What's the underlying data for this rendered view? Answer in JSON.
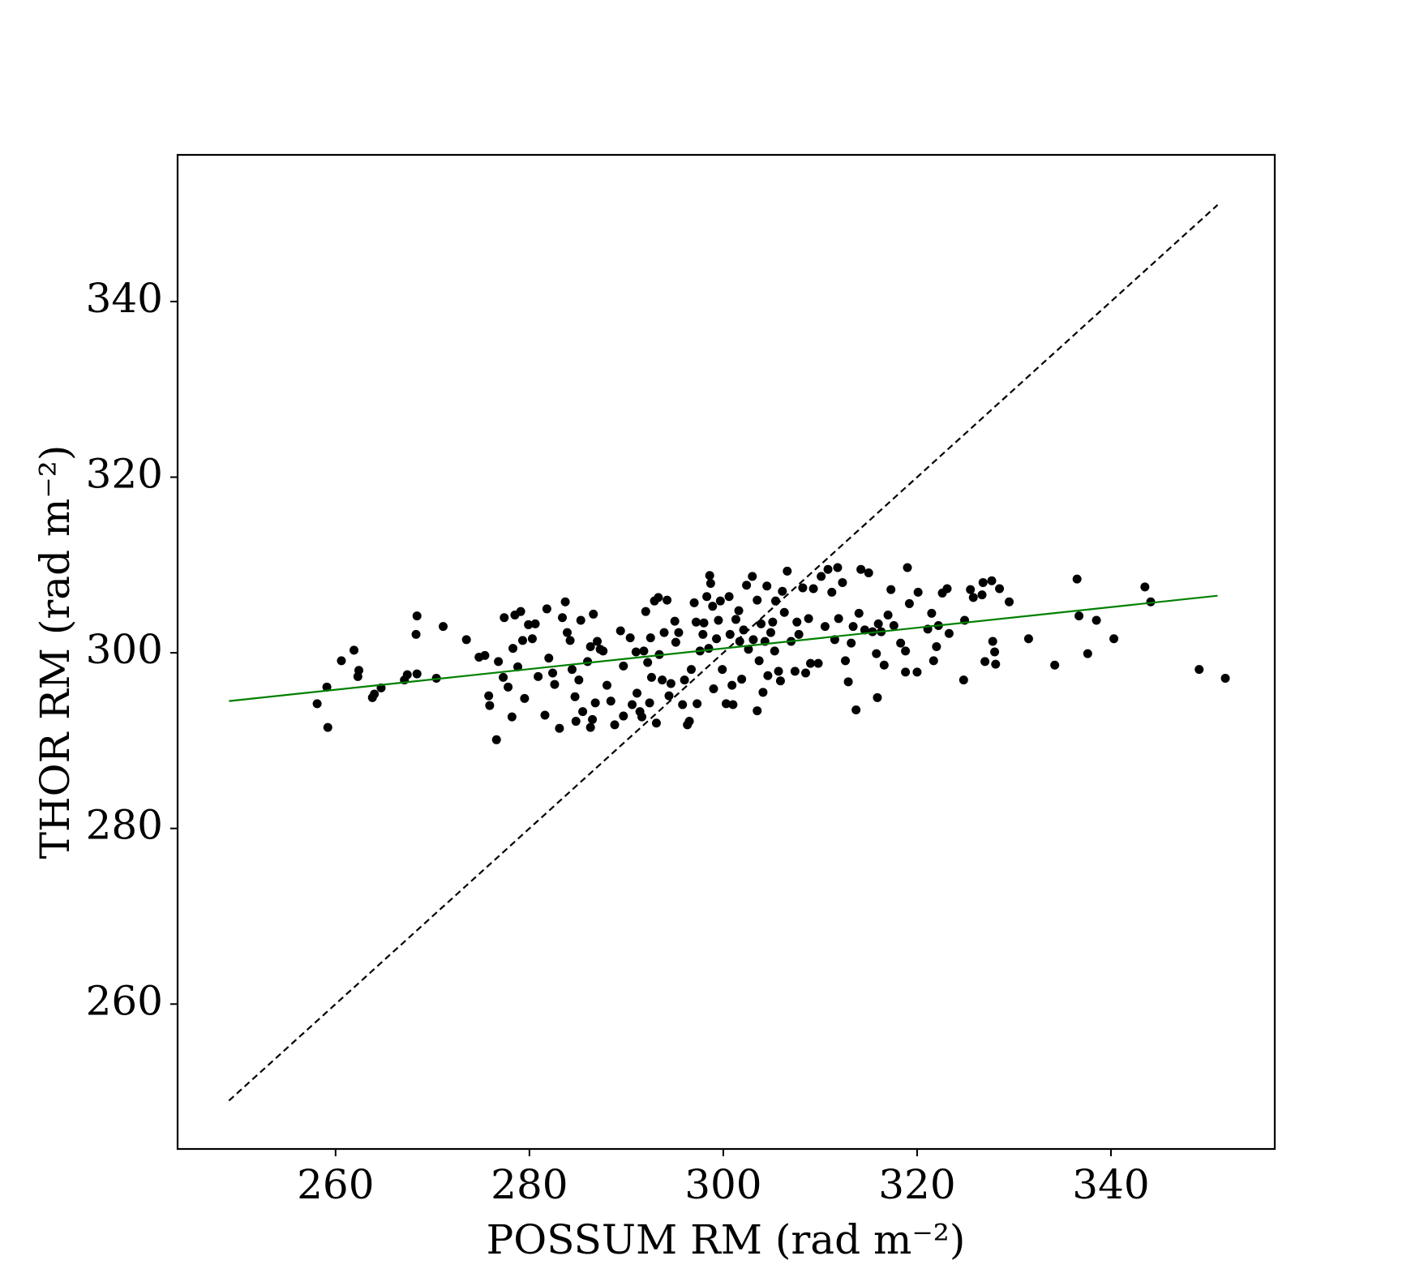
{
  "chart_data": {
    "type": "scatter",
    "xlabel": "POSSUM RM (rad m⁻²)",
    "ylabel": "THOR RM (rad m⁻²)",
    "xlim": [
      243.7,
      356.9
    ],
    "ylim": [
      243.5,
      356.7
    ],
    "xticks": [
      260,
      280,
      300,
      320,
      340
    ],
    "yticks": [
      260,
      280,
      300,
      320,
      340
    ],
    "grid": false,
    "series": [
      {
        "type": "scatter",
        "color": "#000000",
        "x": [
          258.1,
          259.2,
          259.1,
          260.6,
          261.9,
          262.4,
          262.3,
          263.8,
          264.0,
          264.7,
          267.1,
          267.4,
          268.4,
          268.3,
          268.4,
          270.4,
          271.1,
          273.5,
          274.8,
          275.4,
          275.8,
          275.9,
          276.6,
          276.8,
          277.3,
          277.4,
          277.8,
          278.3,
          278.2,
          278.5,
          278.8,
          279.1,
          279.3,
          279.5,
          279.9,
          280.3,
          280.6,
          280.9,
          281.6,
          282.0,
          281.8,
          282.4,
          282.6,
          283.1,
          283.4,
          283.7,
          283.9,
          284.2,
          284.4,
          284.7,
          284.8,
          285.1,
          285.3,
          285.5,
          286.0,
          286.3,
          286.3,
          286.5,
          286.6,
          286.8,
          287.0,
          287.3,
          287.6,
          288.0,
          288.4,
          288.8,
          289.4,
          289.7,
          289.7,
          290.4,
          290.6,
          291.0,
          291.1,
          291.4,
          291.6,
          291.8,
          292.0,
          292.2,
          292.4,
          292.5,
          292.6,
          292.9,
          293.1,
          293.3,
          293.4,
          293.7,
          293.9,
          294.2,
          294.4,
          294.6,
          295.0,
          295.1,
          295.4,
          295.8,
          296.0,
          296.3,
          296.5,
          296.7,
          297.0,
          297.2,
          297.3,
          297.6,
          297.9,
          298.0,
          298.3,
          298.5,
          298.6,
          298.7,
          298.9,
          299.0,
          299.3,
          299.5,
          299.7,
          299.9,
          300.3,
          300.6,
          300.7,
          300.9,
          301.0,
          301.3,
          301.6,
          301.7,
          301.9,
          302.1,
          302.4,
          302.6,
          303.0,
          303.1,
          303.5,
          303.5,
          303.7,
          303.9,
          304.1,
          304.3,
          304.5,
          304.6,
          304.9,
          305.1,
          305.3,
          305.4,
          305.7,
          305.9,
          306.1,
          306.3,
          306.6,
          307.0,
          307.4,
          307.6,
          307.8,
          308.2,
          308.5,
          308.8,
          309.0,
          309.3,
          309.8,
          310.1,
          310.5,
          310.8,
          311.2,
          311.5,
          311.8,
          311.9,
          312.3,
          312.6,
          312.9,
          313.2,
          313.4,
          313.7,
          314.0,
          314.2,
          314.6,
          315.0,
          315.4,
          315.8,
          315.9,
          316.0,
          316.3,
          316.6,
          317.0,
          317.3,
          317.6,
          318.3,
          318.8,
          318.8,
          319.0,
          319.2,
          320.0,
          320.1,
          321.1,
          321.5,
          321.7,
          322.0,
          322.2,
          322.6,
          323.1,
          323.3,
          324.8,
          324.9,
          325.5,
          325.8,
          326.7,
          326.8,
          327.0,
          327.7,
          327.8,
          328.0,
          328.1,
          328.5,
          329.5,
          331.5,
          334.2,
          336.5,
          336.7,
          337.6,
          338.5,
          340.3,
          343.5,
          344.1,
          349.1,
          351.8
        ],
        "values": [
          294.2,
          291.5,
          296.1,
          299.1,
          300.3,
          298.0,
          297.3,
          294.9,
          295.3,
          296.0,
          296.9,
          297.5,
          304.2,
          302.1,
          297.6,
          297.1,
          303.0,
          301.5,
          299.5,
          299.7,
          295.1,
          294.0,
          290.1,
          299.0,
          297.2,
          304.0,
          296.1,
          300.5,
          292.7,
          304.3,
          298.4,
          304.7,
          301.4,
          294.8,
          303.2,
          301.6,
          303.3,
          297.3,
          292.9,
          299.4,
          305.0,
          297.7,
          296.4,
          291.4,
          304.0,
          305.8,
          302.3,
          301.4,
          298.1,
          295.0,
          292.2,
          296.9,
          303.7,
          293.3,
          299.0,
          300.7,
          291.5,
          292.4,
          304.4,
          294.3,
          301.3,
          300.4,
          300.2,
          296.3,
          294.5,
          291.8,
          302.5,
          298.5,
          292.8,
          301.7,
          294.1,
          300.1,
          295.4,
          293.3,
          292.7,
          300.2,
          304.7,
          298.9,
          294.3,
          301.7,
          297.2,
          305.9,
          292.0,
          306.3,
          299.8,
          296.9,
          302.3,
          306.0,
          295.1,
          296.5,
          303.6,
          301.2,
          302.3,
          294.1,
          296.9,
          291.8,
          292.2,
          298.1,
          305.7,
          303.5,
          294.2,
          300.2,
          302.1,
          303.4,
          306.4,
          300.5,
          308.8,
          307.9,
          305.3,
          295.9,
          301.6,
          303.7,
          305.9,
          298.1,
          294.2,
          306.4,
          302.1,
          296.3,
          294.1,
          303.8,
          304.8,
          301.3,
          297.0,
          302.6,
          307.7,
          300.4,
          308.7,
          301.5,
          293.4,
          306.0,
          299.1,
          303.3,
          295.5,
          301.3,
          307.6,
          297.4,
          302.3,
          303.5,
          300.2,
          305.9,
          297.9,
          296.8,
          307.0,
          304.6,
          309.3,
          301.3,
          297.9,
          303.5,
          302.1,
          307.4,
          297.7,
          303.9,
          298.8,
          307.3,
          298.8,
          308.7,
          303.0,
          309.5,
          306.9,
          301.5,
          309.7,
          303.9,
          308.0,
          299.1,
          296.7,
          301.1,
          303.0,
          293.5,
          304.5,
          309.5,
          302.6,
          309.1,
          302.4,
          299.9,
          294.9,
          303.3,
          302.4,
          298.6,
          304.3,
          307.2,
          303.1,
          301.1,
          300.2,
          297.8,
          309.7,
          305.6,
          297.8,
          306.9,
          302.7,
          304.5,
          299.1,
          300.7,
          303.1,
          306.8,
          307.3,
          302.2,
          296.9,
          303.7,
          307.2,
          306.3,
          306.6,
          308.0,
          299.0,
          308.2,
          301.3,
          300.1,
          298.7,
          307.3,
          305.8,
          301.6,
          298.6,
          308.4,
          304.2,
          299.9,
          303.7,
          301.6,
          307.5,
          305.8,
          298.1,
          297.1
        ]
      },
      {
        "type": "line",
        "color": "#000000",
        "linestyle": "dashed",
        "x": [
          249,
          351
        ],
        "values": [
          249,
          351
        ]
      },
      {
        "type": "line",
        "color": "#008000",
        "linestyle": "solid",
        "x": [
          249,
          351
        ],
        "values": [
          294.5,
          306.5
        ]
      }
    ]
  }
}
